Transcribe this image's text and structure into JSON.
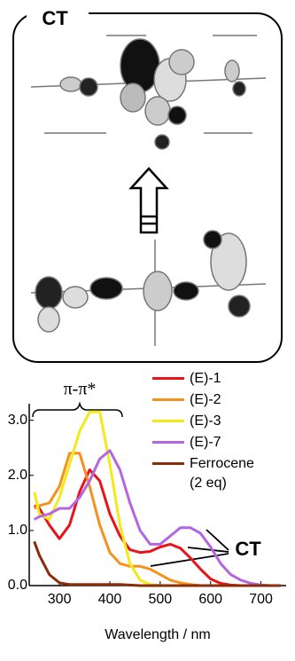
{
  "panel": {
    "label": "CT"
  },
  "chart_data": {
    "type": "line",
    "xlabel": "Wavelength / nm",
    "annotations": {
      "band": "π-π*",
      "ct": "CT"
    },
    "x": [
      250,
      260,
      280,
      300,
      320,
      340,
      360,
      380,
      400,
      420,
      440,
      460,
      480,
      500,
      520,
      540,
      560,
      580,
      600,
      620,
      640,
      660,
      680,
      700,
      720,
      740
    ],
    "series": [
      {
        "name": "(E)-1",
        "color": "#e8141a",
        "values": [
          1.45,
          1.4,
          1.1,
          0.85,
          1.1,
          1.7,
          2.1,
          1.9,
          1.3,
          0.9,
          0.65,
          0.6,
          0.62,
          0.7,
          0.75,
          0.68,
          0.5,
          0.3,
          0.12,
          0.04,
          0.01,
          0,
          0,
          0,
          0,
          0
        ]
      },
      {
        "name": "(E)-2",
        "color": "#f5921e",
        "values": [
          1.4,
          1.45,
          1.5,
          1.8,
          2.4,
          2.4,
          1.8,
          1.1,
          0.6,
          0.4,
          0.35,
          0.35,
          0.3,
          0.2,
          0.1,
          0.05,
          0.02,
          0,
          0,
          0,
          0,
          0,
          0,
          0,
          0,
          0
        ]
      },
      {
        "name": "(E)-3",
        "color": "#f3ea1a",
        "values": [
          1.7,
          1.3,
          1.2,
          1.6,
          2.2,
          2.8,
          3.15,
          3.15,
          2.2,
          1.1,
          0.4,
          0.1,
          0.02,
          0,
          0,
          0,
          0,
          0,
          0,
          0,
          0,
          0,
          0,
          0,
          0,
          0
        ]
      },
      {
        "name": "(E)-7",
        "color": "#b466e0",
        "values": [
          1.2,
          1.25,
          1.3,
          1.4,
          1.4,
          1.6,
          1.9,
          2.3,
          2.45,
          2.1,
          1.5,
          1.0,
          0.75,
          0.75,
          0.9,
          1.05,
          1.05,
          0.95,
          0.7,
          0.4,
          0.2,
          0.1,
          0.04,
          0.01,
          0,
          0
        ]
      },
      {
        "name": "Ferrocene (2 eq)",
        "color": "#8b2c0a",
        "values": [
          0.8,
          0.55,
          0.2,
          0.05,
          0.02,
          0.02,
          0.02,
          0.02,
          0.02,
          0.02,
          0.01,
          0,
          0,
          0,
          0,
          0,
          0,
          0,
          0,
          0,
          0,
          0,
          0,
          0,
          0,
          0
        ]
      }
    ],
    "xlim": [
      240,
      750
    ],
    "xticks": [
      300,
      400,
      500,
      600,
      700
    ],
    "ylim": [
      0,
      3.3
    ],
    "yticks": [
      {
        "value": 0,
        "label": "0.0"
      },
      {
        "value": 1,
        "label": "1.0"
      },
      {
        "value": 2,
        "label": "2.0"
      },
      {
        "value": 3,
        "label": "3.0"
      }
    ],
    "grid": false
  }
}
